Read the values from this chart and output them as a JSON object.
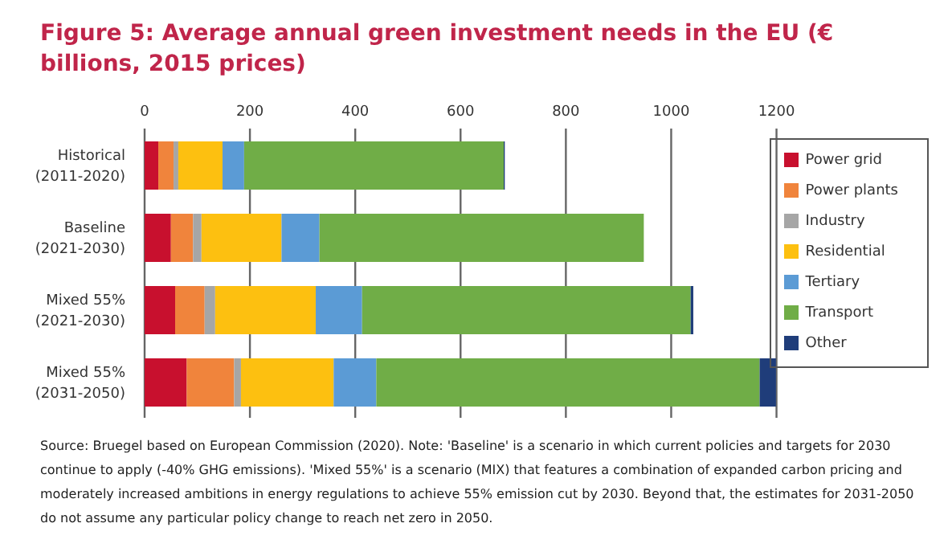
{
  "chart_data": {
    "type": "bar",
    "orientation": "horizontal",
    "stacked": true,
    "title": "Figure 5: Average annual green investment needs in the EU (€ billions, 2015 prices)",
    "categories": [
      "Historical (2011-2020)",
      "Baseline (2021-2030)",
      "Mixed 55% (2021-2030)",
      "Mixed 55% (2031-2050)"
    ],
    "series": [
      {
        "name": "Power grid",
        "color": "#c8102e",
        "values": [
          26,
          50,
          58,
          80
        ]
      },
      {
        "name": "Power plants",
        "color": "#f0843c",
        "values": [
          29,
          42,
          56,
          90
        ]
      },
      {
        "name": "Industry",
        "color": "#a6a6a6",
        "values": [
          9,
          16,
          20,
          13
        ]
      },
      {
        "name": "Residential",
        "color": "#fdc010",
        "values": [
          84,
          152,
          191,
          176
        ]
      },
      {
        "name": "Tertiary",
        "color": "#5b9bd5",
        "values": [
          41,
          72,
          88,
          81
        ]
      },
      {
        "name": "Transport",
        "color": "#70ad47",
        "values": [
          493,
          616,
          624,
          728
        ]
      },
      {
        "name": "Other",
        "color": "#1f3d7a",
        "values": [
          2,
          0,
          5,
          31
        ]
      }
    ],
    "xlim": [
      0,
      1200
    ],
    "xticks": [
      0,
      200,
      400,
      600,
      800,
      1000,
      1200
    ],
    "grid": "x",
    "legend": "right",
    "annotations": [
      "Source: Bruegel based on European Commission (2020). Note: 'Baseline' is a scenario in which current policies and targets for 2030 continue to apply (-40% GHG emissions). 'Mixed 55%' is a scenario (MIX) that features a combination of expanded carbon pricing and moderately increased ambitions in energy regulations to achieve 55% emission cut by 2030. Beyond that, the estimates for 2031-2050 do not assume any particular policy change to reach net zero in 2050."
    ]
  }
}
